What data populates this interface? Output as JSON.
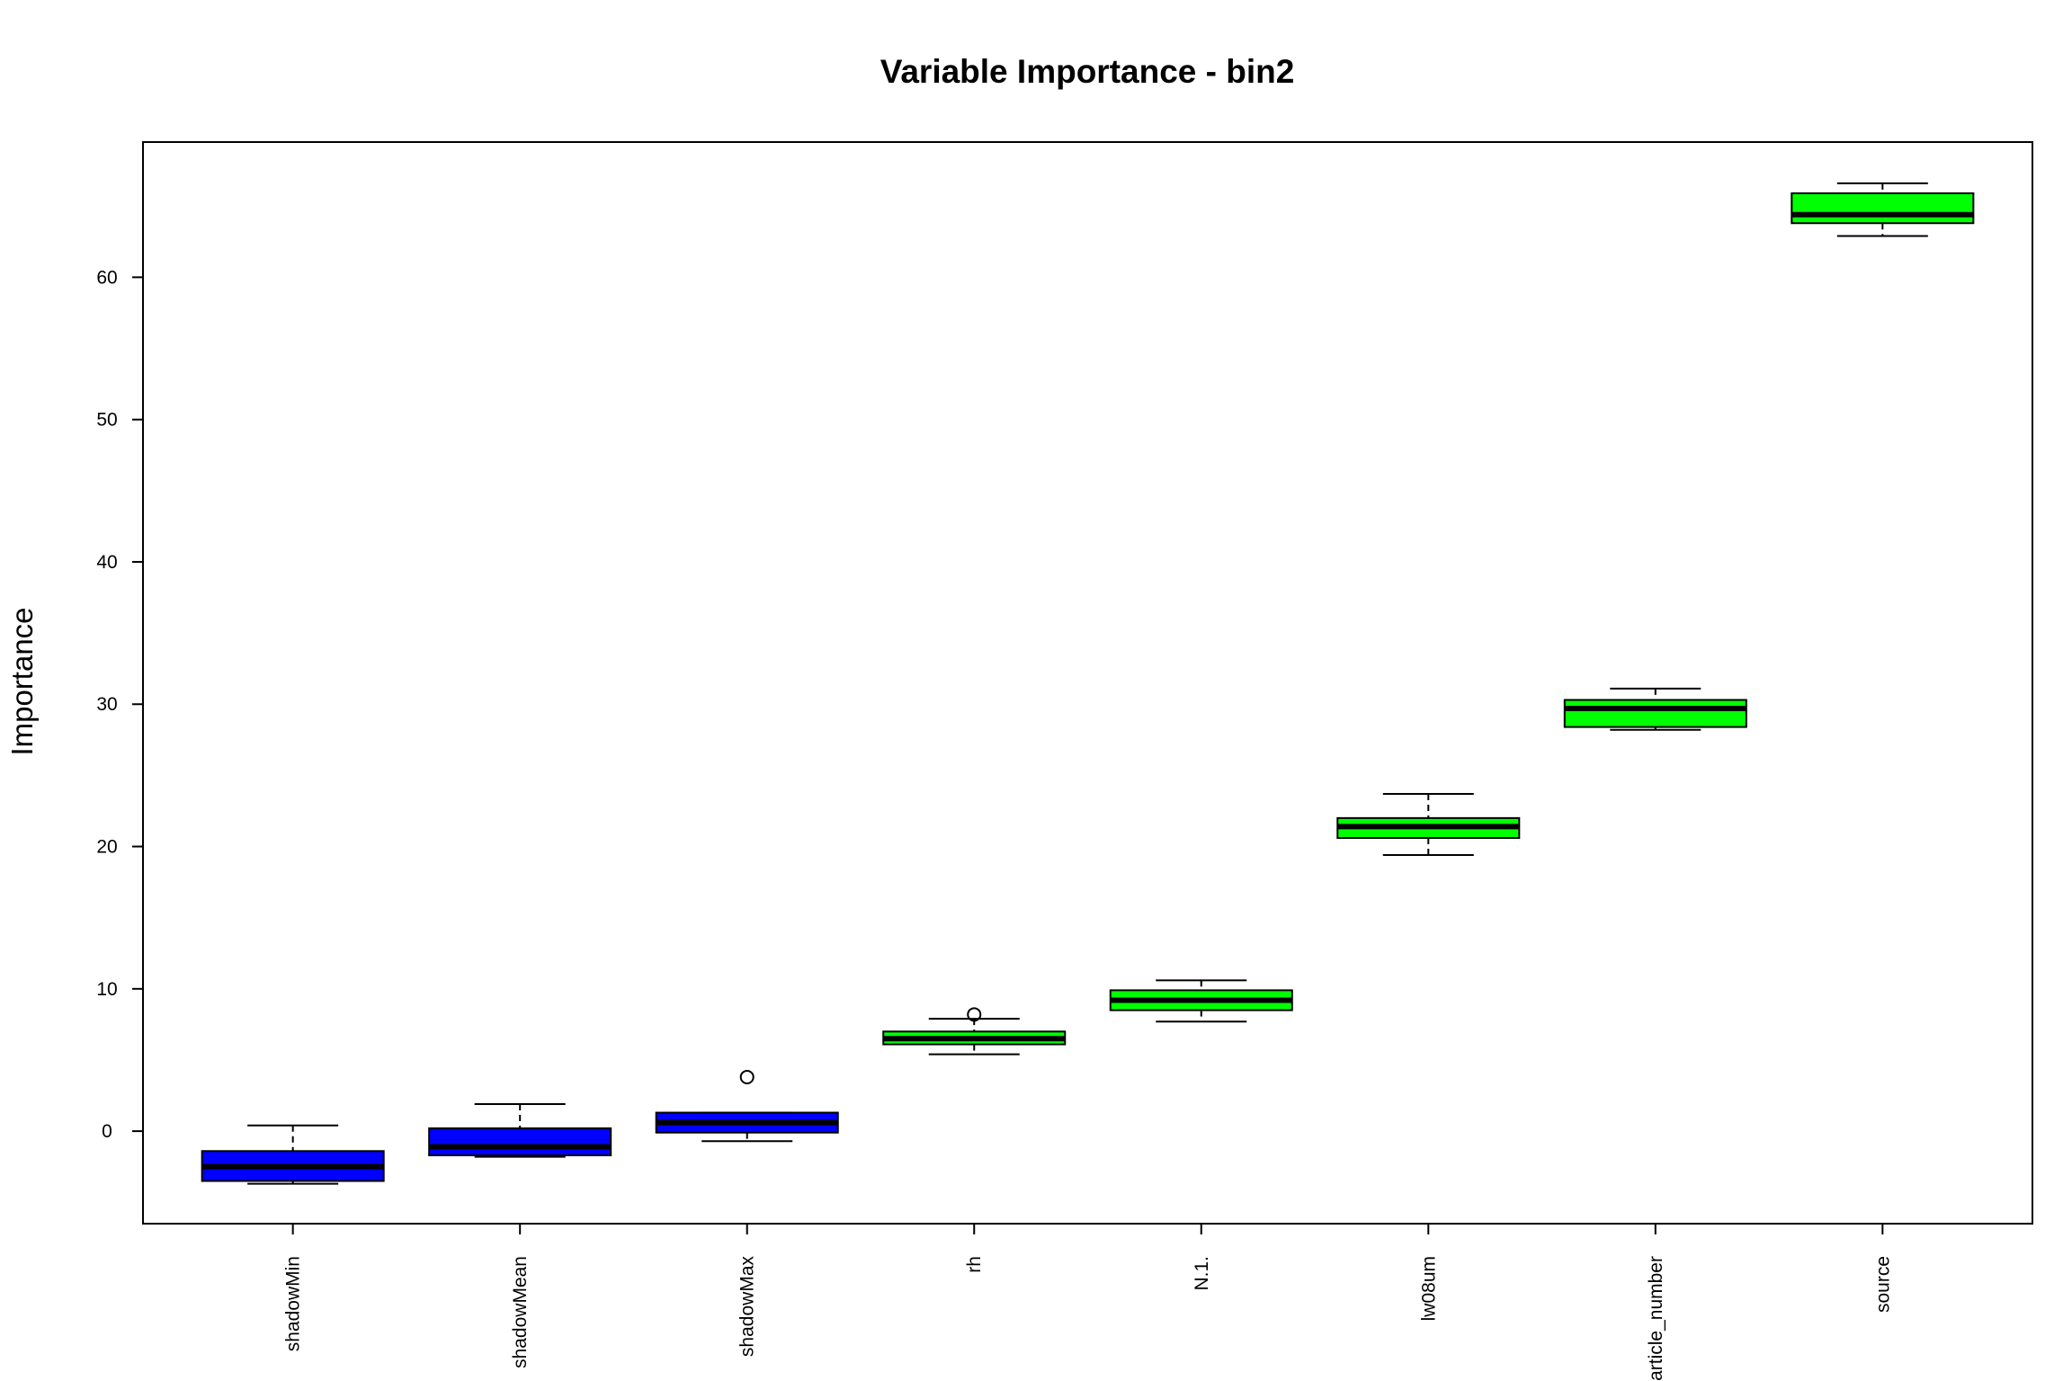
{
  "chart_data": {
    "type": "box",
    "title": "Variable Importance -  bin2",
    "xlabel": "",
    "ylabel": "Importance",
    "ylim": [
      -6.5,
      69.5
    ],
    "yticks": [
      0,
      10,
      20,
      30,
      40,
      50,
      60
    ],
    "grid": false,
    "legend": "none",
    "categories": [
      "shadowMin",
      "shadowMean",
      "shadowMax",
      "rh",
      "N.1.",
      "lw08um",
      "particle_number",
      "source"
    ],
    "boxes": [
      {
        "name": "shadowMin",
        "whisker_low": -3.7,
        "q1": -3.5,
        "median": -2.5,
        "q3": -1.4,
        "whisker_high": 0.4,
        "outliers": [],
        "color": "#0000ff"
      },
      {
        "name": "shadowMean",
        "whisker_low": -1.8,
        "q1": -1.7,
        "median": -1.1,
        "q3": 0.2,
        "whisker_high": 1.9,
        "outliers": [],
        "color": "#0000ff"
      },
      {
        "name": "shadowMax",
        "whisker_low": -0.7,
        "q1": -0.1,
        "median": 0.6,
        "q3": 1.3,
        "whisker_high": 1.3,
        "outliers": [
          3.8
        ],
        "color": "#0000ff"
      },
      {
        "name": "rh",
        "whisker_low": 5.4,
        "q1": 6.1,
        "median": 6.5,
        "q3": 7.0,
        "whisker_high": 7.9,
        "outliers": [
          8.2
        ],
        "color": "#00ff00"
      },
      {
        "name": "N.1.",
        "whisker_low": 7.7,
        "q1": 8.5,
        "median": 9.2,
        "q3": 9.9,
        "whisker_high": 10.6,
        "outliers": [],
        "color": "#00ff00"
      },
      {
        "name": "lw08um",
        "whisker_low": 19.4,
        "q1": 20.6,
        "median": 21.4,
        "q3": 22.0,
        "whisker_high": 23.7,
        "outliers": [],
        "color": "#00ff00"
      },
      {
        "name": "particle_number",
        "whisker_low": 28.2,
        "q1": 28.4,
        "median": 29.7,
        "q3": 30.3,
        "whisker_high": 31.1,
        "outliers": [],
        "color": "#00ff00"
      },
      {
        "name": "source",
        "whisker_low": 62.9,
        "q1": 63.8,
        "median": 64.4,
        "q3": 65.9,
        "whisker_high": 66.6,
        "outliers": [],
        "color": "#00ff00"
      }
    ]
  }
}
